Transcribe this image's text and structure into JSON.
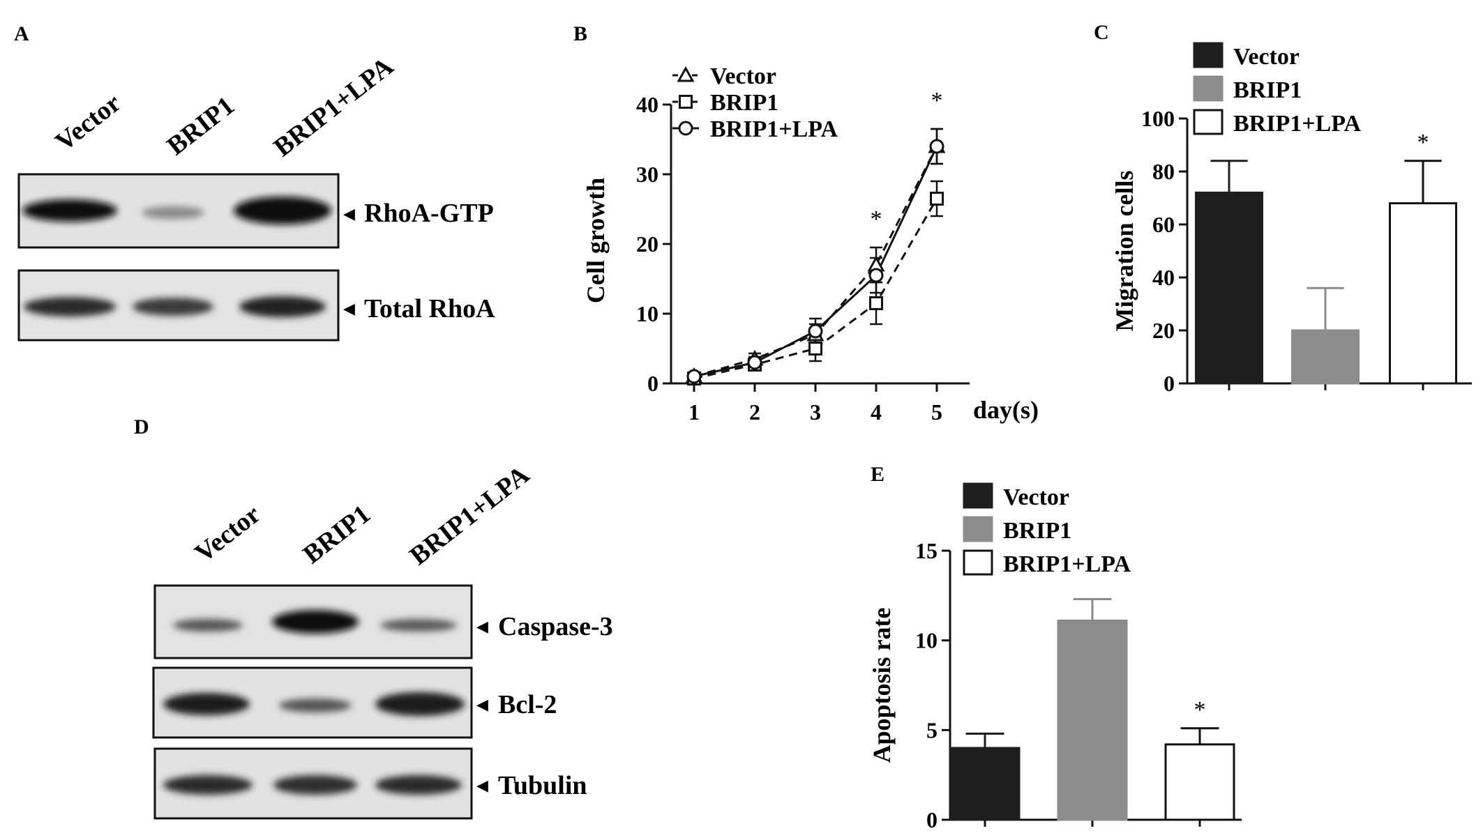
{
  "panels": {
    "A": {
      "letter": "A",
      "lanes": [
        "Vector",
        "BRIP1",
        "BRIP1+LPA"
      ],
      "blot_labels": [
        "RhoA-GTP",
        "Total RhoA"
      ]
    },
    "B": {
      "letter": "B"
    },
    "C": {
      "letter": "C"
    },
    "D": {
      "letter": "D",
      "lanes": [
        "Vector",
        "BRIP1",
        "BRIP1+LPA"
      ],
      "blot_labels": [
        "Caspase-3",
        "Bcl-2",
        "Tubulin"
      ]
    },
    "E": {
      "letter": "E"
    }
  },
  "arrow_glyph": "◀",
  "significance_mark": "*",
  "chart_data": [
    {
      "panel": "B",
      "type": "line",
      "xlabel": "day(s)",
      "ylabel": "Cell growth",
      "x": [
        1,
        2,
        3,
        4,
        5
      ],
      "xticks": [
        "1",
        "2",
        "3",
        "4",
        "5"
      ],
      "ylim": [
        0,
        40
      ],
      "yticks": [
        "0",
        "10",
        "20",
        "30",
        "40"
      ],
      "legend_position": "top-left",
      "series": [
        {
          "name": "Vector",
          "marker": "triangle",
          "dash": "dashed",
          "values": [
            1,
            3.5,
            7,
            17,
            34
          ],
          "errors": [
            0.5,
            0.8,
            1.5,
            2.5,
            2.5
          ]
        },
        {
          "name": "BRIP1",
          "marker": "square",
          "dash": "dashed",
          "values": [
            0.7,
            2.7,
            5,
            11.5,
            26.5
          ],
          "errors": [
            0.4,
            0.7,
            1.8,
            3,
            2.5
          ]
        },
        {
          "name": "BRIP1+LPA",
          "marker": "circle",
          "dash": "solid",
          "values": [
            1,
            3,
            7.5,
            15.5,
            34
          ],
          "errors": [
            0.5,
            0.8,
            1.8,
            2.5,
            2.5
          ]
        }
      ],
      "annotations": [
        {
          "x": 4,
          "text": "*"
        },
        {
          "x": 5,
          "text": "*"
        }
      ]
    },
    {
      "panel": "C",
      "type": "bar",
      "ylabel": "Migration cells",
      "ylim": [
        0,
        100
      ],
      "yticks": [
        "0",
        "20",
        "40",
        "60",
        "80",
        "100"
      ],
      "legend_position": "top",
      "series": [
        {
          "name": "Vector",
          "value": 72,
          "error": 12,
          "color": "#1e1e1e"
        },
        {
          "name": "BRIP1",
          "value": 20,
          "error": 16,
          "color": "#8c8c8c"
        },
        {
          "name": "BRIP1+LPA",
          "value": 68,
          "error": 16,
          "color": "#ffffff"
        }
      ],
      "annotations": [
        {
          "series": "BRIP1+LPA",
          "text": "*"
        }
      ]
    },
    {
      "panel": "E",
      "type": "bar",
      "ylabel": "Apoptosis rate",
      "ylim": [
        0,
        15
      ],
      "yticks": [
        "0",
        "5",
        "10",
        "15"
      ],
      "legend_position": "top",
      "series": [
        {
          "name": "Vector",
          "value": 4.0,
          "error": 0.8,
          "color": "#1e1e1e"
        },
        {
          "name": "BRIP1",
          "value": 11.1,
          "error": 1.2,
          "color": "#8c8c8c"
        },
        {
          "name": "BRIP1+LPA",
          "value": 4.2,
          "error": 0.9,
          "color": "#ffffff"
        }
      ],
      "annotations": [
        {
          "series": "BRIP1+LPA",
          "text": "*"
        }
      ]
    }
  ]
}
